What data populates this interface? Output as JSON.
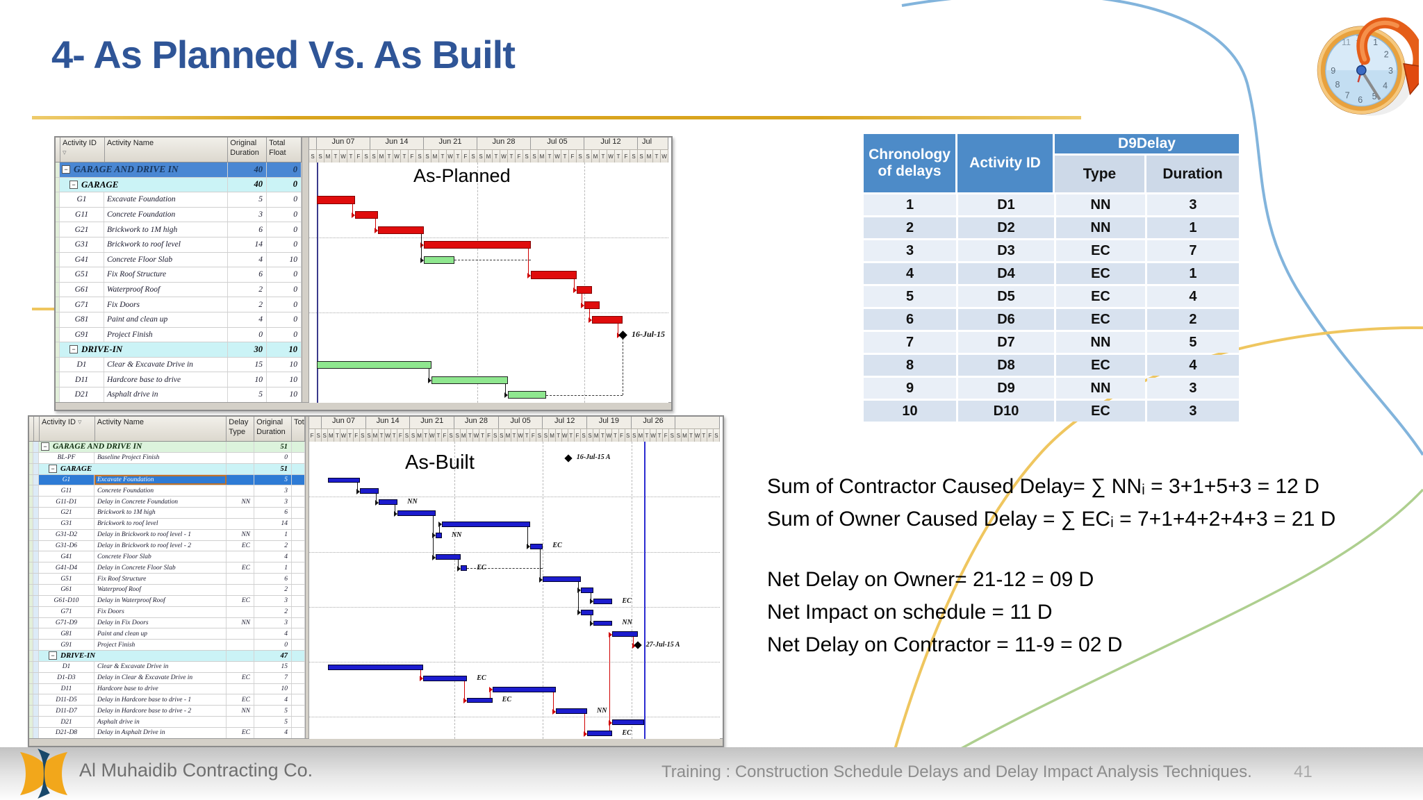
{
  "slide": {
    "title": "4- As Planned Vs. As Built",
    "page_number": "41",
    "footer_company": "Al Muhaidib Contracting Co.",
    "footer_training": "Training : Construction Schedule Delays and Delay Impact Analysis Techniques."
  },
  "colors": {
    "title_blue": "#2F5597",
    "gold_rule": "#D9A41D",
    "table_header_blue": "#4D8BC8",
    "row_light": "#E9EFF7",
    "row_dark": "#D8E2EF",
    "critical_bar": "#E00C0C",
    "noncritical_bar": "#8FE78F",
    "asbuilt_bar": "#1C1CCE",
    "summary_blue_row": "#4A87D3",
    "summary_cyan_row": "#CBF3F6",
    "summary_green_row": "#DCF3DC",
    "selected_row": "#2E7BD5",
    "selected_outline": "#BE7128"
  },
  "delay_table": {
    "col1_header": "Chronology of delays",
    "col2_header": "Activity ID",
    "group_header": "D9Delay",
    "sub_headers": [
      "Type",
      "Duration"
    ],
    "rows": [
      [
        "1",
        "D1",
        "NN",
        "3"
      ],
      [
        "2",
        "D2",
        "NN",
        "1"
      ],
      [
        "3",
        "D3",
        "EC",
        "7"
      ],
      [
        "4",
        "D4",
        "EC",
        "1"
      ],
      [
        "5",
        "D5",
        "EC",
        "4"
      ],
      [
        "6",
        "D6",
        "EC",
        "2"
      ],
      [
        "7",
        "D7",
        "NN",
        "5"
      ],
      [
        "8",
        "D8",
        "EC",
        "4"
      ],
      [
        "9",
        "D9",
        "NN",
        "3"
      ],
      [
        "10",
        "D10",
        "EC",
        "3"
      ]
    ]
  },
  "calculations": {
    "sum_lines": [
      "Sum of Contractor Caused Delay= ∑ NNᵢ = 3+1+5+3 = 12 D",
      "Sum of Owner Caused Delay = ∑ ECᵢ = 7+1+4+2+4+3 = 21 D"
    ],
    "net_lines": [
      "Net Delay on Owner= 21-12 = 09 D",
      "Net Impact on schedule = 11 D",
      "Net Delay on Contractor = 11-9 = 02 D"
    ]
  },
  "panes": {
    "as_planned": {
      "columns": [
        {
          "key": "id",
          "label": "Activity ID"
        },
        {
          "key": "name",
          "label": "Activity Name"
        },
        {
          "key": "dur",
          "label": "Original Duration"
        },
        {
          "key": "fl",
          "label": "Total Float"
        }
      ],
      "rows": [
        {
          "t": "s1",
          "name": "GARAGE AND DRIVE IN",
          "dur": "40",
          "fl": "0"
        },
        {
          "t": "s2",
          "name": "GARAGE",
          "dur": "40",
          "fl": "0"
        },
        {
          "id": "G1",
          "name": "Excavate Foundation",
          "dur": "5",
          "fl": "0"
        },
        {
          "id": "G11",
          "name": "Concrete Foundation",
          "dur": "3",
          "fl": "0"
        },
        {
          "id": "G21",
          "name": "Brickwork to 1M high",
          "dur": "6",
          "fl": "0"
        },
        {
          "id": "G31",
          "name": "Brickwork to roof level",
          "dur": "14",
          "fl": "0"
        },
        {
          "id": "G41",
          "name": "Concrete Floor Slab",
          "dur": "4",
          "fl": "10"
        },
        {
          "id": "G51",
          "name": "Fix Roof Structure",
          "dur": "6",
          "fl": "0"
        },
        {
          "id": "G61",
          "name": "Waterproof Roof",
          "dur": "2",
          "fl": "0"
        },
        {
          "id": "G71",
          "name": "Fix Doors",
          "dur": "2",
          "fl": "0"
        },
        {
          "id": "G81",
          "name": "Paint and clean up",
          "dur": "4",
          "fl": "0"
        },
        {
          "id": "G91",
          "name": "Project Finish",
          "dur": "0",
          "fl": "0"
        },
        {
          "t": "s2",
          "name": "DRIVE-IN",
          "dur": "30",
          "fl": "10"
        },
        {
          "id": "D1",
          "name": "Clear & Excavate Drive in",
          "dur": "15",
          "fl": "10"
        },
        {
          "id": "D11",
          "name": "Hardcore base to drive",
          "dur": "10",
          "fl": "10"
        },
        {
          "id": "D21",
          "name": "Asphalt drive in",
          "dur": "5",
          "fl": "10"
        }
      ],
      "gantt": {
        "chart_label": "As-Planned",
        "prefix_days": [
          "S"
        ],
        "weeks": [
          "Jun 07",
          "Jun 14",
          "Jun 21",
          "Jun 28",
          "Jul 05",
          "Jul 12"
        ],
        "suffix_week_label": "Jul",
        "suffix_days": [
          "S",
          "M",
          "T",
          "W"
        ],
        "day_letters": [
          "S",
          "M",
          "T",
          "W",
          "T",
          "F",
          "S"
        ],
        "bars": [
          {
            "id": "G1",
            "row": 2,
            "start": 1,
            "len": 5,
            "color": "red"
          },
          {
            "id": "G11",
            "row": 3,
            "start": 6,
            "len": 3,
            "color": "red"
          },
          {
            "id": "G21",
            "row": 4,
            "start": 9,
            "len": 6,
            "color": "red"
          },
          {
            "id": "G31",
            "row": 5,
            "start": 15,
            "len": 14,
            "color": "red"
          },
          {
            "id": "G41",
            "row": 6,
            "start": 15,
            "len": 4,
            "color": "green"
          },
          {
            "id": "G51",
            "row": 7,
            "start": 29,
            "len": 6,
            "color": "red"
          },
          {
            "id": "G61",
            "row": 8,
            "start": 35,
            "len": 2,
            "color": "red"
          },
          {
            "id": "G71",
            "row": 9,
            "start": 36,
            "len": 2,
            "color": "red"
          },
          {
            "id": "G81",
            "row": 10,
            "start": 37,
            "len": 4,
            "color": "red"
          },
          {
            "id": "G91",
            "row": 11,
            "milestone": true,
            "day": 41,
            "label": "16-Jul-15"
          },
          {
            "id": "D1",
            "row": 13,
            "start": 1,
            "len": 15,
            "color": "green"
          },
          {
            "id": "D11",
            "row": 14,
            "start": 16,
            "len": 10,
            "color": "green"
          },
          {
            "id": "D21",
            "row": 15,
            "start": 26,
            "len": 5,
            "color": "green"
          }
        ],
        "links": [
          {
            "from": 0,
            "to": 1,
            "color": "red"
          },
          {
            "from": 1,
            "to": 2,
            "color": "red"
          },
          {
            "from": 2,
            "to": 3,
            "color": "red"
          },
          {
            "from": 3,
            "to": 5,
            "color": "red"
          },
          {
            "from": 5,
            "to": 6,
            "color": "red"
          },
          {
            "from": 6,
            "to": 7,
            "color": "red"
          },
          {
            "from": 7,
            "to": 8,
            "color": "red"
          },
          {
            "from": 8,
            "to": 9,
            "color": "red"
          },
          {
            "from": 2,
            "to": 4,
            "color": "black"
          },
          {
            "from": 10,
            "to": 11,
            "color": "black"
          },
          {
            "from": 11,
            "to": 12,
            "color": "black"
          }
        ],
        "float_dashes": [
          {
            "row": 6,
            "from": 19,
            "to": 29
          },
          {
            "row": 15,
            "from": 31,
            "to": 41
          }
        ],
        "vert_dashes": [
          {
            "day": 41,
            "from_row": 11,
            "to_row": 15
          }
        ],
        "grid_days": [
          22,
          36
        ],
        "grid_rows": [
          5,
          10
        ],
        "data_date_day": 1
      }
    },
    "as_built": {
      "columns": [
        {
          "key": "id",
          "label": "Activity ID"
        },
        {
          "key": "name",
          "label": "Activity Name"
        },
        {
          "key": "dt",
          "label": "Delay Type"
        },
        {
          "key": "dur",
          "label": "Original Duration"
        },
        {
          "key": "tot",
          "label": "Tot"
        }
      ],
      "rows": [
        {
          "t": "s1g",
          "name": "GARAGE AND DRIVE IN",
          "dur": "51"
        },
        {
          "id": "BL-PF",
          "name": "Baseline Project Finish",
          "dt": "",
          "dur": "0"
        },
        {
          "t": "s2",
          "name": "GARAGE",
          "dur": "51"
        },
        {
          "id": "G1",
          "name": "Excavate Foundation",
          "dt": "",
          "dur": "5",
          "sel": true
        },
        {
          "id": "G11",
          "name": "Concrete Foundation",
          "dt": "",
          "dur": "3"
        },
        {
          "id": "G11-D1",
          "name": "Delay in Concrete Foundation",
          "dt": "NN",
          "dur": "3"
        },
        {
          "id": "G21",
          "name": "Brickwork to 1M high",
          "dt": "",
          "dur": "6"
        },
        {
          "id": "G31",
          "name": "Brickwork to roof level",
          "dt": "",
          "dur": "14"
        },
        {
          "id": "G31-D2",
          "name": "Delay in Brickwork to roof level - 1",
          "dt": "NN",
          "dur": "1"
        },
        {
          "id": "G31-D6",
          "name": "Delay in Brickwork to roof level - 2",
          "dt": "EC",
          "dur": "2"
        },
        {
          "id": "G41",
          "name": "Concrete Floor Slab",
          "dt": "",
          "dur": "4"
        },
        {
          "id": "G41-D4",
          "name": "Delay in Concrete Floor Slab",
          "dt": "EC",
          "dur": "1"
        },
        {
          "id": "G51",
          "name": "Fix Roof Structure",
          "dt": "",
          "dur": "6"
        },
        {
          "id": "G61",
          "name": "Waterproof Roof",
          "dt": "",
          "dur": "2"
        },
        {
          "id": "G61-D10",
          "name": "Delay in Waterproof Roof",
          "dt": "EC",
          "dur": "3"
        },
        {
          "id": "G71",
          "name": "Fix Doors",
          "dt": "",
          "dur": "2"
        },
        {
          "id": "G71-D9",
          "name": "Delay in Fix Doors",
          "dt": "NN",
          "dur": "3"
        },
        {
          "id": "G81",
          "name": "Paint and clean up",
          "dt": "",
          "dur": "4"
        },
        {
          "id": "G91",
          "name": "Project Finish",
          "dt": "",
          "dur": "0"
        },
        {
          "t": "s2",
          "name": "DRIVE-IN",
          "dur": "47"
        },
        {
          "id": "D1",
          "name": "Clear & Excavate Drive in",
          "dt": "",
          "dur": "15"
        },
        {
          "id": "D1-D3",
          "name": "Delay in Clear & Excavate Drive in",
          "dt": "EC",
          "dur": "7"
        },
        {
          "id": "D11",
          "name": "Hardcore base to drive",
          "dt": "",
          "dur": "10"
        },
        {
          "id": "D11-D5",
          "name": "Delay in Hardcore base to drive - 1",
          "dt": "EC",
          "dur": "4"
        },
        {
          "id": "D11-D7",
          "name": "Delay in Hardcore base to drive - 2",
          "dt": "NN",
          "dur": "5"
        },
        {
          "id": "D21",
          "name": "Asphalt drive in",
          "dt": "",
          "dur": "5"
        },
        {
          "id": "D21-D8",
          "name": "Delay in Asphalt Drive in",
          "dt": "EC",
          "dur": "4"
        }
      ],
      "gantt": {
        "chart_label": "As-Built",
        "prefix_days": [
          "F",
          "S"
        ],
        "weeks": [
          "Jun 07",
          "Jun 14",
          "Jun 21",
          "Jun 28",
          "Jul 05",
          "Jul 12",
          "Jul 19",
          "Jul 26"
        ],
        "suffix_week_label": "",
        "suffix_days": [
          "S",
          "M",
          "T",
          "W",
          "T",
          "F",
          "S"
        ],
        "day_letters": [
          "S",
          "M",
          "T",
          "W",
          "T",
          "F",
          "S"
        ],
        "bars": [
          {
            "id": "G1",
            "row": 3,
            "start": 3,
            "len": 5,
            "color": "blue"
          },
          {
            "id": "G11",
            "row": 4,
            "start": 8,
            "len": 3,
            "color": "blue"
          },
          {
            "id": "G11-D1",
            "row": 5,
            "start": 11,
            "len": 3,
            "color": "blue",
            "label": "NN"
          },
          {
            "id": "G21",
            "row": 6,
            "start": 14,
            "len": 6,
            "color": "blue"
          },
          {
            "id": "G31",
            "row": 7,
            "start": 21,
            "len": 14,
            "color": "blue"
          },
          {
            "id": "G31-D2",
            "row": 8,
            "start": 20,
            "len": 1,
            "color": "blue",
            "label": "NN"
          },
          {
            "id": "G31-D6",
            "row": 9,
            "start": 35,
            "len": 2,
            "color": "blue",
            "label": "EC"
          },
          {
            "id": "G41",
            "row": 10,
            "start": 20,
            "len": 4,
            "color": "blue"
          },
          {
            "id": "G41-D4",
            "row": 11,
            "start": 24,
            "len": 1,
            "color": "blue",
            "label": "EC"
          },
          {
            "id": "G51",
            "row": 12,
            "start": 37,
            "len": 6,
            "color": "blue"
          },
          {
            "id": "G61",
            "row": 13,
            "start": 43,
            "len": 2,
            "color": "blue"
          },
          {
            "id": "G61-D10",
            "row": 14,
            "start": 45,
            "len": 3,
            "color": "blue",
            "label": "EC"
          },
          {
            "id": "G71",
            "row": 15,
            "start": 43,
            "len": 2,
            "color": "blue"
          },
          {
            "id": "G71-D9",
            "row": 16,
            "start": 45,
            "len": 3,
            "color": "blue",
            "label": "NN"
          },
          {
            "id": "G81",
            "row": 17,
            "start": 48,
            "len": 4,
            "color": "blue"
          },
          {
            "id": "G91",
            "row": 18,
            "milestone": true,
            "day": 52,
            "label": "27-Jul-15 A"
          },
          {
            "id": "BL-PF",
            "row": 1,
            "milestone": true,
            "day": 41,
            "label": "16-Jul-15 A"
          },
          {
            "id": "D1",
            "row": 20,
            "start": 3,
            "len": 15,
            "color": "blue"
          },
          {
            "id": "D1-D3",
            "row": 21,
            "start": 18,
            "len": 7,
            "color": "blue",
            "label": "EC"
          },
          {
            "id": "D11",
            "row": 22,
            "start": 29,
            "len": 10,
            "color": "blue"
          },
          {
            "id": "D11-D5",
            "row": 23,
            "start": 25,
            "len": 4,
            "color": "blue",
            "label": "EC"
          },
          {
            "id": "D11-D7",
            "row": 24,
            "start": 39,
            "len": 5,
            "color": "blue",
            "label": "NN"
          },
          {
            "id": "D21",
            "row": 25,
            "start": 48,
            "len": 5,
            "color": "blue"
          },
          {
            "id": "D21-D8",
            "row": 26,
            "start": 44,
            "len": 4,
            "color": "blue",
            "label": "EC"
          }
        ],
        "links": [
          {
            "from": 0,
            "to": 1,
            "color": "black"
          },
          {
            "from": 1,
            "to": 2,
            "color": "black"
          },
          {
            "from": 2,
            "to": 3,
            "color": "black"
          },
          {
            "from": 3,
            "to": 5,
            "color": "black"
          },
          {
            "from": 5,
            "to": 4,
            "color": "black"
          },
          {
            "from": 3,
            "to": 7,
            "color": "black"
          },
          {
            "from": 7,
            "to": 8,
            "color": "black"
          },
          {
            "from": 4,
            "to": 6,
            "color": "black"
          },
          {
            "from": 6,
            "to": 9,
            "color": "black"
          },
          {
            "from": 9,
            "to": 10,
            "color": "black"
          },
          {
            "from": 10,
            "to": 11,
            "color": "black"
          },
          {
            "from": 9,
            "to": 12,
            "color": "black"
          },
          {
            "from": 12,
            "to": 13,
            "color": "black"
          },
          {
            "from": 14,
            "to": 15,
            "color": "red"
          },
          {
            "from": 17,
            "to": 18,
            "color": "red"
          },
          {
            "from": 18,
            "to": 20,
            "color": "red"
          },
          {
            "from": 20,
            "to": 19,
            "color": "red"
          },
          {
            "from": 19,
            "to": 21,
            "color": "red"
          },
          {
            "from": 21,
            "to": 23,
            "color": "red"
          },
          {
            "from": 23,
            "to": 22,
            "color": "red"
          },
          {
            "from": 23,
            "to": 14,
            "color": "red"
          }
        ],
        "float_dashes": [
          {
            "row": 11,
            "from": 25,
            "to": 37
          },
          {
            "row": 16,
            "from": 48,
            "to": 48
          }
        ],
        "vert_dashes": [],
        "grid_days": [
          23,
          37,
          51
        ],
        "grid_rows": [
          5,
          10,
          15,
          20,
          25
        ],
        "data_date_day": 53
      }
    }
  }
}
